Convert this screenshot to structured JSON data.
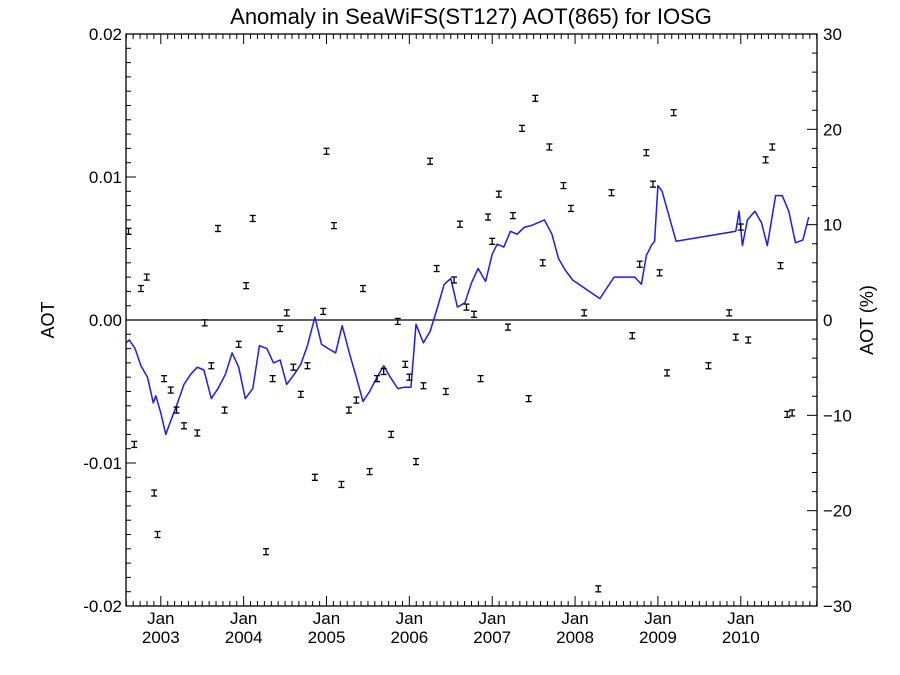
{
  "chart_data": {
    "type": "scatter",
    "title": "Anomaly in SeaWiFS(ST127) AOT(865) for IOSG",
    "ylabel": "AOT",
    "y2label": "AOT (%)",
    "xlabel": "",
    "xlim": [
      2002.58,
      2010.92
    ],
    "ylim": [
      -0.02,
      0.02
    ],
    "y2lim": [
      -30,
      30
    ],
    "x_ticks": [
      {
        "value": 2003.0,
        "month": "Jan",
        "year": "2003"
      },
      {
        "value": 2004.0,
        "month": "Jan",
        "year": "2004"
      },
      {
        "value": 2005.0,
        "month": "Jan",
        "year": "2005"
      },
      {
        "value": 2006.0,
        "month": "Jan",
        "year": "2006"
      },
      {
        "value": 2007.0,
        "month": "Jan",
        "year": "2007"
      },
      {
        "value": 2008.0,
        "month": "Jan",
        "year": "2008"
      },
      {
        "value": 2009.0,
        "month": "Jan",
        "year": "2009"
      },
      {
        "value": 2010.0,
        "month": "Jan",
        "year": "2010"
      }
    ],
    "y_ticks": [
      {
        "value": 0.02,
        "label": "0.02"
      },
      {
        "value": 0.01,
        "label": "0.01"
      },
      {
        "value": 0.0,
        "label": "0.00"
      },
      {
        "value": -0.01,
        "label": "-0.01"
      },
      {
        "value": -0.02,
        "label": "-0.02"
      }
    ],
    "y2_ticks": [
      {
        "value": 30,
        "label": "30"
      },
      {
        "value": 20,
        "label": "20"
      },
      {
        "value": 10,
        "label": "10"
      },
      {
        "value": 0,
        "label": "0"
      },
      {
        "value": -10,
        "label": "−10"
      },
      {
        "value": -20,
        "label": "−20"
      },
      {
        "value": -30,
        "label": "−30"
      }
    ],
    "zero_line": true,
    "grid": false,
    "legend": "none",
    "series": [
      {
        "kind": "points_with_error_bars",
        "color": "#000000",
        "error": 0.00018,
        "points": [
          [
            2002.61,
            0.0062
          ],
          [
            2002.68,
            -0.0087
          ],
          [
            2002.76,
            0.0022
          ],
          [
            2002.83,
            0.003
          ],
          [
            2002.92,
            -0.0121
          ],
          [
            2002.96,
            -0.015
          ],
          [
            2003.04,
            -0.0041
          ],
          [
            2003.12,
            -0.0049
          ],
          [
            2003.19,
            -0.0063
          ],
          [
            2003.28,
            -0.0074
          ],
          [
            2003.44,
            -0.0079
          ],
          [
            2003.53,
            -0.0002
          ],
          [
            2003.61,
            -0.0032
          ],
          [
            2003.69,
            0.0064
          ],
          [
            2003.77,
            -0.0063
          ],
          [
            2003.94,
            -0.0017
          ],
          [
            2004.03,
            0.0024
          ],
          [
            2004.11,
            0.0071
          ],
          [
            2004.27,
            -0.0162
          ],
          [
            2004.35,
            -0.0041
          ],
          [
            2004.44,
            -0.0006
          ],
          [
            2004.52,
            0.0005
          ],
          [
            2004.6,
            -0.0033
          ],
          [
            2004.69,
            -0.0052
          ],
          [
            2004.77,
            -0.0032
          ],
          [
            2004.86,
            -0.011
          ],
          [
            2004.96,
            0.0006
          ],
          [
            2005.0,
            0.0118
          ],
          [
            2005.09,
            0.0066
          ],
          [
            2005.18,
            -0.0115
          ],
          [
            2005.27,
            -0.0063
          ],
          [
            2005.36,
            -0.0056
          ],
          [
            2005.44,
            0.0022
          ],
          [
            2005.52,
            -0.0106
          ],
          [
            2005.61,
            -0.0041
          ],
          [
            2005.69,
            -0.0036
          ],
          [
            2005.78,
            -0.008
          ],
          [
            2005.86,
            -0.0001
          ],
          [
            2005.95,
            -0.0031
          ],
          [
            2006.0,
            -0.004
          ],
          [
            2006.08,
            -0.0099
          ],
          [
            2006.17,
            -0.0046
          ],
          [
            2006.25,
            0.0111
          ],
          [
            2006.33,
            0.0036
          ],
          [
            2006.44,
            -0.005
          ],
          [
            2006.54,
            0.0028
          ],
          [
            2006.61,
            0.0067
          ],
          [
            2006.69,
            0.0009
          ],
          [
            2006.78,
            0.0004
          ],
          [
            2006.86,
            -0.0041
          ],
          [
            2006.95,
            0.0072
          ],
          [
            2007.0,
            0.0055
          ],
          [
            2007.08,
            0.0088
          ],
          [
            2007.19,
            -0.0005
          ],
          [
            2007.25,
            0.0073
          ],
          [
            2007.36,
            0.0134
          ],
          [
            2007.44,
            -0.0055
          ],
          [
            2007.52,
            0.0155
          ],
          [
            2007.61,
            0.004
          ],
          [
            2007.69,
            0.0121
          ],
          [
            2007.86,
            0.0094
          ],
          [
            2007.95,
            0.0078
          ],
          [
            2008.11,
            0.0005
          ],
          [
            2008.28,
            -0.0188
          ],
          [
            2008.44,
            0.0089
          ],
          [
            2008.69,
            -0.0011
          ],
          [
            2008.78,
            0.0039
          ],
          [
            2008.86,
            0.0117
          ],
          [
            2008.94,
            0.0095
          ],
          [
            2009.02,
            0.0033
          ],
          [
            2009.11,
            -0.0037
          ],
          [
            2009.19,
            0.0145
          ],
          [
            2009.61,
            -0.0032
          ],
          [
            2009.86,
            0.0005
          ],
          [
            2009.94,
            -0.0012
          ],
          [
            2010.0,
            0.0065
          ],
          [
            2010.09,
            -0.0014
          ],
          [
            2010.3,
            0.0112
          ],
          [
            2010.38,
            0.0121
          ],
          [
            2010.48,
            0.0038
          ],
          [
            2010.56,
            -0.0066
          ],
          [
            2010.62,
            -0.0065
          ]
        ]
      },
      {
        "kind": "line",
        "color": "#1a1aff",
        "points": [
          [
            2002.58,
            -0.0016
          ],
          [
            2002.62,
            -0.0014
          ],
          [
            2002.69,
            -0.002
          ],
          [
            2002.76,
            -0.0032
          ],
          [
            2002.84,
            -0.004
          ],
          [
            2002.91,
            -0.0058
          ],
          [
            2002.94,
            -0.0053
          ],
          [
            2003.0,
            -0.0065
          ],
          [
            2003.06,
            -0.008
          ],
          [
            2003.11,
            -0.0072
          ],
          [
            2003.19,
            -0.006
          ],
          [
            2003.28,
            -0.0045
          ],
          [
            2003.36,
            -0.0038
          ],
          [
            2003.44,
            -0.0033
          ],
          [
            2003.52,
            -0.0035
          ],
          [
            2003.61,
            -0.0055
          ],
          [
            2003.69,
            -0.0048
          ],
          [
            2003.78,
            -0.0038
          ],
          [
            2003.86,
            -0.0023
          ],
          [
            2003.94,
            -0.0033
          ],
          [
            2004.02,
            -0.0055
          ],
          [
            2004.11,
            -0.0048
          ],
          [
            2004.19,
            -0.0018
          ],
          [
            2004.28,
            -0.002
          ],
          [
            2004.36,
            -0.003
          ],
          [
            2004.44,
            -0.0028
          ],
          [
            2004.52,
            -0.0045
          ],
          [
            2004.61,
            -0.0038
          ],
          [
            2004.69,
            -0.0031
          ],
          [
            2004.77,
            -0.0018
          ],
          [
            2004.86,
            0.0002
          ],
          [
            2004.94,
            -0.0017
          ],
          [
            2005.02,
            -0.002
          ],
          [
            2005.11,
            -0.0023
          ],
          [
            2005.19,
            -0.0004
          ],
          [
            2005.28,
            -0.0024
          ],
          [
            2005.36,
            -0.004
          ],
          [
            2005.44,
            -0.0057
          ],
          [
            2005.52,
            -0.005
          ],
          [
            2005.61,
            -0.004
          ],
          [
            2005.69,
            -0.0032
          ],
          [
            2005.77,
            -0.004
          ],
          [
            2005.86,
            -0.0048
          ],
          [
            2005.94,
            -0.0047
          ],
          [
            2006.02,
            -0.0047
          ],
          [
            2006.08,
            -0.0003
          ],
          [
            2006.17,
            -0.0016
          ],
          [
            2006.25,
            -0.0008
          ],
          [
            2006.33,
            0.0007
          ],
          [
            2006.42,
            0.0025
          ],
          [
            2006.5,
            0.0029
          ],
          [
            2006.58,
            0.0009
          ],
          [
            2006.67,
            0.0012
          ],
          [
            2006.75,
            0.0026
          ],
          [
            2006.83,
            0.0036
          ],
          [
            2006.92,
            0.0027
          ],
          [
            2007.0,
            0.0046
          ],
          [
            2007.06,
            0.0053
          ],
          [
            2007.14,
            0.0051
          ],
          [
            2007.22,
            0.0062
          ],
          [
            2007.3,
            0.006
          ],
          [
            2007.39,
            0.0065
          ],
          [
            2007.47,
            0.0066
          ],
          [
            2007.55,
            0.0068
          ],
          [
            2007.63,
            0.007
          ],
          [
            2007.72,
            0.006
          ],
          [
            2007.8,
            0.0043
          ],
          [
            2007.88,
            0.0035
          ],
          [
            2007.97,
            0.0028
          ],
          [
            2008.3,
            0.0015
          ],
          [
            2008.47,
            0.003
          ],
          [
            2008.72,
            0.003
          ],
          [
            2008.8,
            0.0025
          ],
          [
            2008.86,
            0.0045
          ],
          [
            2008.92,
            0.0052
          ],
          [
            2008.96,
            0.0055
          ],
          [
            2009.0,
            0.0094
          ],
          [
            2009.05,
            0.009
          ],
          [
            2009.22,
            0.0055
          ],
          [
            2009.94,
            0.0062
          ],
          [
            2009.98,
            0.0076
          ],
          [
            2010.02,
            0.0052
          ],
          [
            2010.08,
            0.007
          ],
          [
            2010.17,
            0.0076
          ],
          [
            2010.25,
            0.0068
          ],
          [
            2010.32,
            0.0052
          ],
          [
            2010.42,
            0.0087
          ],
          [
            2010.5,
            0.0087
          ],
          [
            2010.58,
            0.0076
          ],
          [
            2010.66,
            0.0054
          ],
          [
            2010.75,
            0.0056
          ],
          [
            2010.82,
            0.0072
          ]
        ]
      }
    ]
  }
}
